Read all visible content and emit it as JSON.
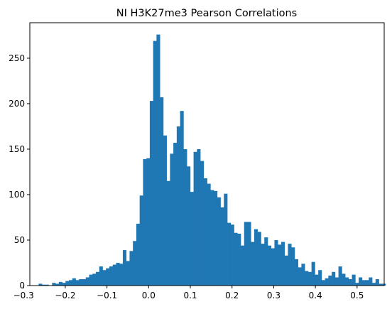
{
  "chart_data": {
    "type": "bar",
    "title": "NI H3K27me3 Pearson Correlations",
    "xlabel": "",
    "ylabel": "",
    "xlim": [
      -0.285,
      0.565
    ],
    "ylim": [
      0,
      289
    ],
    "grid": false,
    "bar_color": "#1f77b4",
    "x_ticks": [
      {
        "value": -0.3,
        "label": "−0.3"
      },
      {
        "value": -0.2,
        "label": "−0.2"
      },
      {
        "value": -0.1,
        "label": "−0.1"
      },
      {
        "value": 0.0,
        "label": "0.0"
      },
      {
        "value": 0.1,
        "label": "0.1"
      },
      {
        "value": 0.2,
        "label": "0.2"
      },
      {
        "value": 0.3,
        "label": "0.3"
      },
      {
        "value": 0.4,
        "label": "0.4"
      },
      {
        "value": 0.5,
        "label": "0.5"
      }
    ],
    "y_ticks": [
      {
        "value": 0,
        "label": "0"
      },
      {
        "value": 50,
        "label": "50"
      },
      {
        "value": 100,
        "label": "100"
      },
      {
        "value": 150,
        "label": "150"
      },
      {
        "value": 200,
        "label": "200"
      },
      {
        "value": 250,
        "label": "250"
      }
    ],
    "bin_start": -0.264,
    "bin_width": 0.008082,
    "counts": [
      2,
      1,
      1,
      0,
      3,
      2,
      4,
      3,
      5,
      6,
      8,
      6,
      7,
      7,
      9,
      12,
      13,
      15,
      21,
      17,
      19,
      21,
      23,
      25,
      24,
      39,
      27,
      38,
      49,
      68,
      99,
      139,
      140,
      203,
      269,
      276,
      207,
      165,
      115,
      145,
      157,
      175,
      192,
      150,
      131,
      103,
      147,
      150,
      137,
      118,
      112,
      105,
      104,
      97,
      86,
      101,
      69,
      67,
      58,
      57,
      44,
      70,
      70,
      48,
      62,
      59,
      46,
      53,
      44,
      41,
      50,
      45,
      48,
      33,
      46,
      42,
      29,
      20,
      24,
      16,
      15,
      26,
      12,
      17,
      6,
      8,
      11,
      15,
      9,
      21,
      13,
      9,
      7,
      12,
      3,
      9,
      6,
      6,
      9,
      3,
      7,
      2
    ],
    "tail_counts": [
      2,
      0,
      0,
      1
    ]
  }
}
